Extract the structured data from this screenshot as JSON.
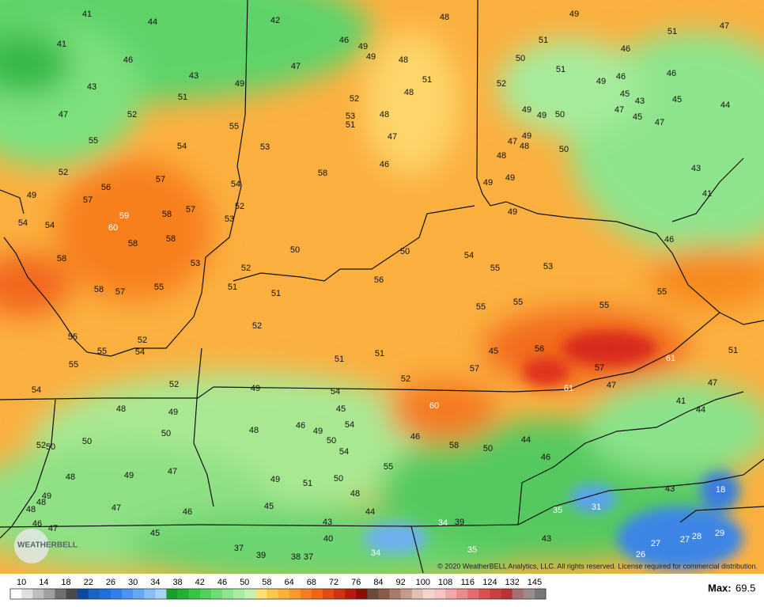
{
  "stations": [
    41,
    44,
    42,
    48,
    49,
    51,
    47,
    41,
    46,
    46,
    49,
    49,
    48,
    51,
    50,
    46,
    43,
    43,
    49,
    47,
    51,
    52,
    51,
    49,
    46,
    46,
    47,
    52,
    51,
    52,
    48,
    45,
    43,
    45,
    44,
    53,
    48,
    51,
    49,
    49,
    50,
    47,
    45,
    47,
    55,
    55,
    54,
    53,
    47,
    47,
    49,
    48,
    50,
    48,
    52,
    58,
    46,
    43,
    57,
    56,
    54,
    49,
    49,
    49,
    57,
    41,
    52,
    57,
    59,
    58,
    53,
    54,
    54,
    60,
    49,
    58,
    58,
    46,
    50,
    50,
    54,
    58,
    53,
    52,
    55,
    53,
    56,
    51,
    55,
    58,
    57,
    51,
    55,
    55,
    55,
    55,
    52,
    55,
    52,
    55,
    54,
    45,
    56,
    51,
    51,
    61,
    51,
    55,
    57,
    57,
    52,
    54,
    52,
    49,
    54,
    61,
    47,
    47,
    48,
    49,
    45,
    60,
    41,
    44,
    54,
    46,
    49,
    50,
    48,
    46,
    50,
    52,
    50,
    50,
    58,
    50,
    44,
    54,
    46,
    55,
    48,
    49,
    47,
    49,
    51,
    50,
    48,
    43,
    18,
    49,
    48,
    48,
    47,
    46,
    45,
    44,
    31,
    35,
    46,
    47,
    45,
    43,
    34,
    39,
    40,
    43,
    27,
    27,
    28,
    29,
    37,
    39,
    38,
    37,
    34,
    35,
    26
  ],
  "legend": {
    "ticks": [
      10,
      14,
      18,
      22,
      26,
      30,
      34,
      38,
      42,
      46,
      50,
      58,
      64,
      68,
      72,
      76,
      84,
      92,
      100,
      108,
      116,
      124,
      132,
      145
    ],
    "max_label": "Max:",
    "max_value": 69.5
  },
  "logo": "WEATHERBELL",
  "copyright": "© 2020 WeatherBELL Analytics, LLC. All rights reserved. License required for commercial distribution."
}
